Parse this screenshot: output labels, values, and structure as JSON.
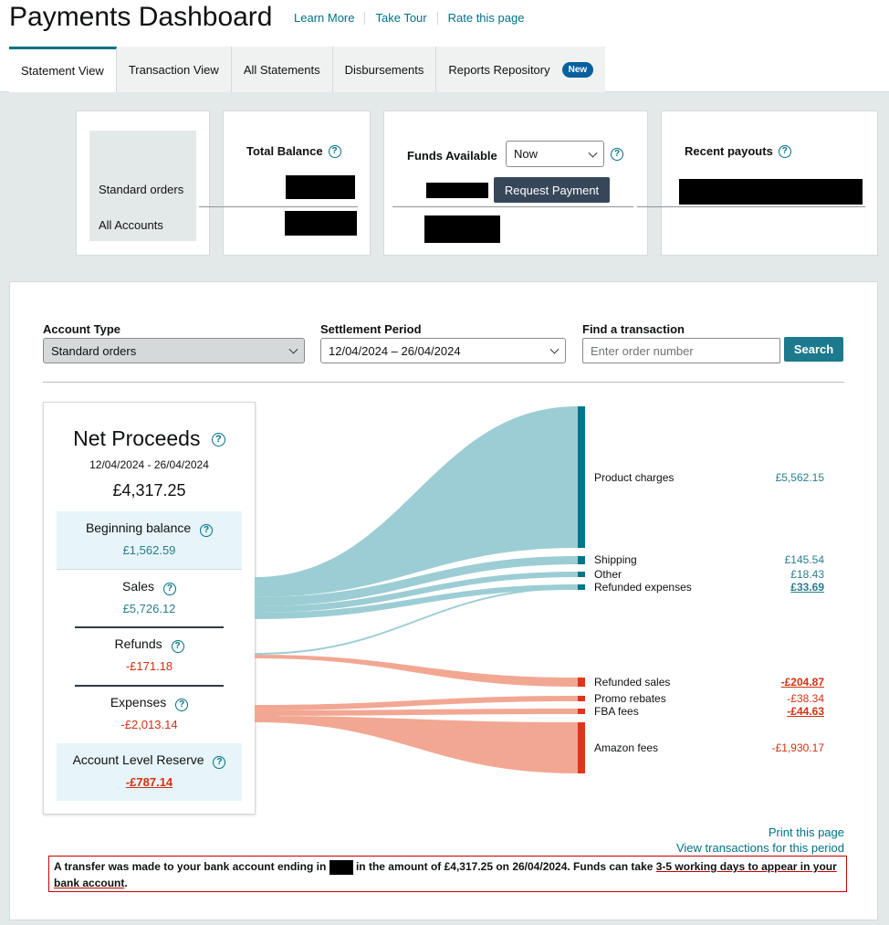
{
  "header": {
    "title": "Payments Dashboard",
    "links": [
      "Learn More",
      "Take Tour",
      "Rate this page"
    ]
  },
  "tabs": [
    {
      "label": "Statement View",
      "active": true
    },
    {
      "label": "Transaction View"
    },
    {
      "label": "All Statements"
    },
    {
      "label": "Disbursements"
    },
    {
      "label": "Reports Repository",
      "badge": "New"
    }
  ],
  "summary": {
    "rows": [
      "Standard orders",
      "All Accounts"
    ],
    "total_balance": "Total Balance",
    "funds_available": "Funds Available",
    "funds_select": "Now",
    "request_payment": "Request Payment",
    "recent_payouts": "Recent payouts"
  },
  "filters": {
    "account_type_label": "Account Type",
    "account_type_value": "Standard orders",
    "settlement_label": "Settlement Period",
    "settlement_value": "12/04/2024 – 26/04/2024",
    "find_label": "Find a transaction",
    "find_placeholder": "Enter order number",
    "search_label": "Search"
  },
  "net_proceeds": {
    "title": "Net Proceeds",
    "period": "12/04/2024 - 26/04/2024",
    "total": "£4,317.25",
    "sections": [
      {
        "label": "Beginning balance",
        "value": "£1,562.59"
      },
      {
        "label": "Sales",
        "value": "£5,726.12"
      },
      {
        "label": "Refunds",
        "value": "-£171.18"
      },
      {
        "label": "Expenses",
        "value": "-£2,013.14"
      },
      {
        "label": "Account Level Reserve",
        "value": "-£787.14"
      }
    ]
  },
  "breakdown": [
    {
      "label": "Product charges",
      "value": "£5,562.15",
      "amount": 5562.15
    },
    {
      "label": "Shipping",
      "value": "£145.54",
      "amount": 145.54
    },
    {
      "label": "Other",
      "value": "£18.43",
      "amount": 18.43
    },
    {
      "label": "Refunded expenses",
      "value": "£33.69",
      "amount": 33.69
    },
    {
      "label": "Refunded sales",
      "value": "-£204.87",
      "amount": -204.87
    },
    {
      "label": "Promo rebates",
      "value": "-£38.34",
      "amount": -38.34
    },
    {
      "label": "FBA fees",
      "value": "-£44.63",
      "amount": -44.63
    },
    {
      "label": "Amazon fees",
      "value": "-£1,930.17",
      "amount": -1930.17
    }
  ],
  "colors": {
    "positive": "#99ccd3",
    "positive_bar": "#00768b",
    "negative": "#f2a793",
    "negative_bar": "#e0351a"
  },
  "links": {
    "print": "Print this page",
    "view": "View transactions for this period"
  },
  "notice": {
    "part1": "A transfer was made to your bank account ending in ",
    "part2": " in the amount of £4,317.25 on 26/04/2024. Funds can take ",
    "part3": "3-5 working days to appear in your bank account",
    "part4": "."
  }
}
